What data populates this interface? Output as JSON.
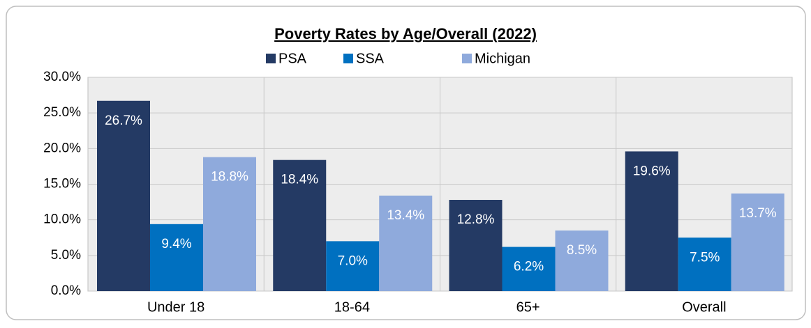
{
  "chart_data": {
    "type": "bar",
    "title": "Poverty Rates by Age/Overall (2022)",
    "categories": [
      "Under 18",
      "18-64",
      "65+",
      "Overall"
    ],
    "series": [
      {
        "name": "PSA",
        "color": "#243a64",
        "values": [
          26.7,
          18.4,
          12.8,
          19.6
        ],
        "value_labels": [
          "26.7%",
          "18.4%",
          "12.8%",
          "19.6%"
        ]
      },
      {
        "name": "SSA",
        "color": "#0070c0",
        "values": [
          9.4,
          7.0,
          6.2,
          7.5
        ],
        "value_labels": [
          "9.4%",
          "7.0%",
          "6.2%",
          "7.5%"
        ]
      },
      {
        "name": "Michigan",
        "color": "#8faadc",
        "values": [
          18.8,
          13.4,
          8.5,
          13.7
        ],
        "value_labels": [
          "18.8%",
          "13.4%",
          "8.5%",
          "13.7%"
        ]
      }
    ],
    "ylim": [
      0,
      30
    ],
    "yticks": [
      {
        "value": 0,
        "label": "0.0%"
      },
      {
        "value": 5,
        "label": "5.0%"
      },
      {
        "value": 10,
        "label": "10.0%"
      },
      {
        "value": 15,
        "label": "15.0%"
      },
      {
        "value": 20,
        "label": "20.0%"
      },
      {
        "value": 25,
        "label": "25.0%"
      },
      {
        "value": 30,
        "label": "30.0%"
      }
    ],
    "grid": true,
    "legend": "top"
  }
}
